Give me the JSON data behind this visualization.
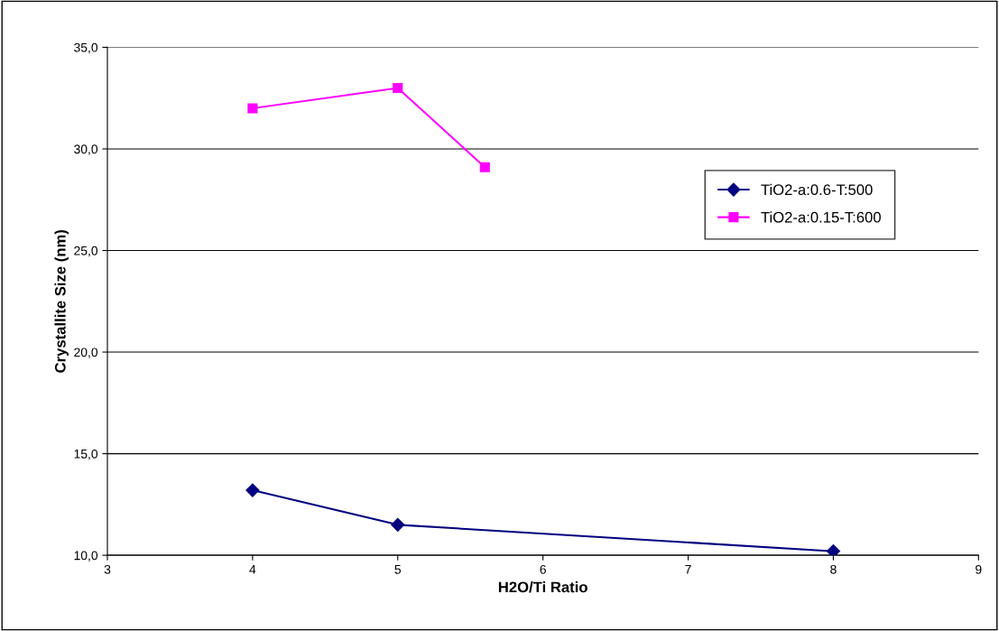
{
  "chart_data": {
    "type": "line",
    "xlabel": "H2O/Ti Ratio",
    "ylabel": "Crystallite Size (nm)",
    "xlim": [
      3,
      9
    ],
    "xticks": [
      3,
      4,
      5,
      6,
      7,
      8,
      9
    ],
    "ylim": [
      10,
      35
    ],
    "yticks": [
      {
        "value": 10,
        "label": "10,0"
      },
      {
        "value": 15,
        "label": "15,0"
      },
      {
        "value": 20,
        "label": "20,0"
      },
      {
        "value": 25,
        "label": "25,0"
      },
      {
        "value": 30,
        "label": "30,0"
      },
      {
        "value": 35,
        "label": "35,0"
      }
    ],
    "grid": "y",
    "legend": "top right",
    "series": [
      {
        "name": "TiO2-a:0.6-T:500",
        "color": "#000080",
        "marker": "diamond",
        "x": [
          4,
          5,
          8
        ],
        "values": [
          13.2,
          11.5,
          10.2
        ]
      },
      {
        "name": "TiO2-a:0.15-T:600",
        "color": "#ff00ff",
        "marker": "square",
        "x": [
          4,
          5,
          5.6
        ],
        "values": [
          32.0,
          33.0,
          29.1
        ]
      }
    ]
  }
}
